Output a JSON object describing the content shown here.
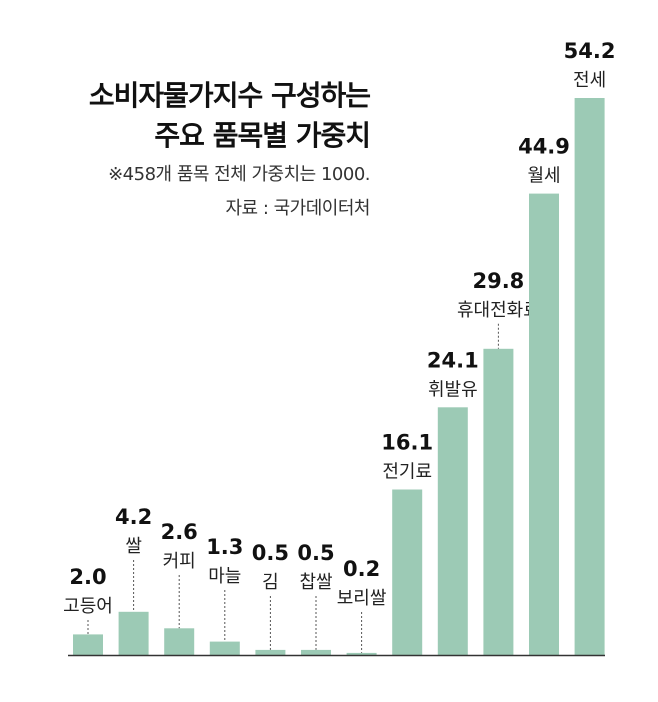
{
  "chart_data": {
    "type": "bar",
    "title_lines": [
      "소비자물가지수 구성하는",
      "주요 품목별 가중치"
    ],
    "notes": [
      "※458개 품목 전체 가중치는 1000.",
      "자료 : 국가데이터처"
    ],
    "categories": [
      "고등어",
      "쌀",
      "커피",
      "마늘",
      "김",
      "찹쌀",
      "보리쌀",
      "전기료",
      "휘발유",
      "휴대전화료",
      "월세",
      "전세"
    ],
    "values": [
      2.0,
      4.2,
      2.6,
      1.3,
      0.5,
      0.5,
      0.2,
      16.1,
      24.1,
      29.8,
      44.9,
      54.2
    ],
    "value_labels": [
      "2.0",
      "4.2",
      "2.6",
      "1.3",
      "0.5",
      "0.5",
      "0.2",
      "16.1",
      "24.1",
      "29.8",
      "44.9",
      "54.2"
    ],
    "ylim": [
      0,
      54.2
    ],
    "grid": false,
    "bar_color": "#9ccab5",
    "axis_color": "#333333",
    "leader_color": "#555555"
  }
}
